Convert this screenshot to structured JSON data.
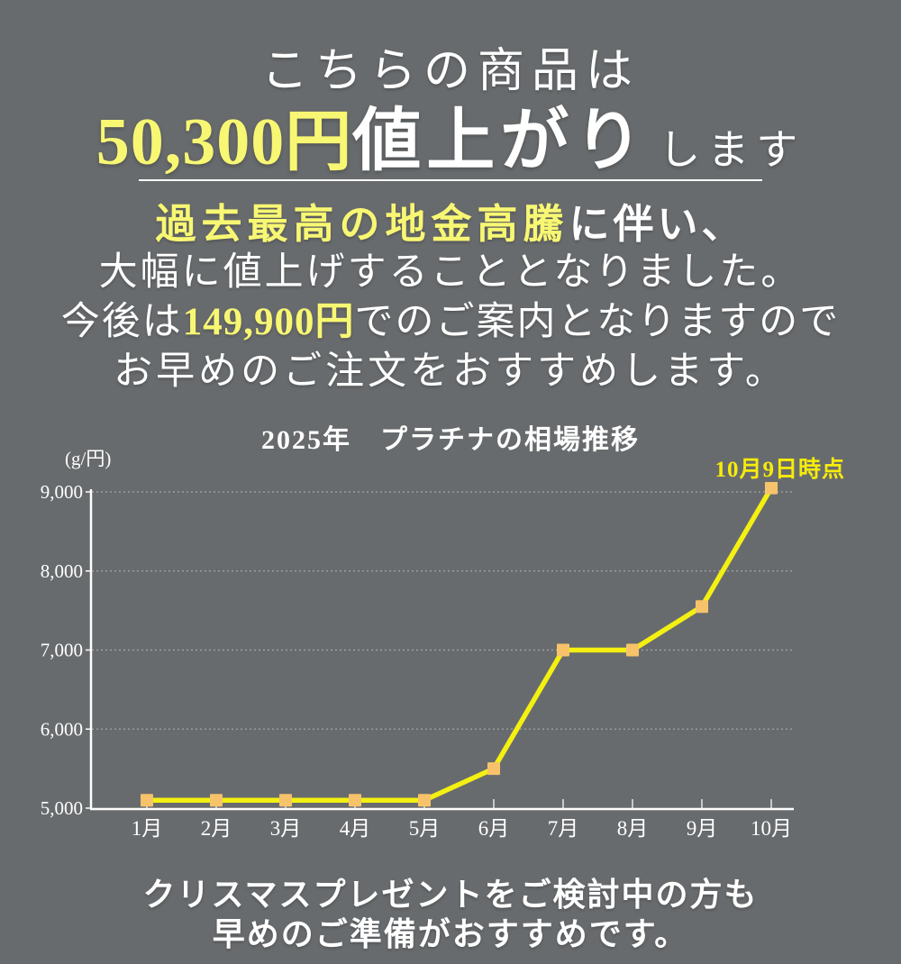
{
  "colors": {
    "background": "#686b6d",
    "text_white": "#ffffff",
    "highlight_yellow": "#f8f773",
    "annotation_yellow": "#f6ec0a",
    "line_yellow": "#f3f012",
    "marker_orange": "#f6c36b",
    "axis_white": "#fdfdfd",
    "gridline_gray": "#a3a5a7"
  },
  "header": {
    "line1": "こちらの商品は",
    "line2_price": "50,300円",
    "line2_main": "値上がり",
    "line2_suffix": "します"
  },
  "notice": {
    "line1_highlight": "過去最高の地金高騰",
    "line1_rest": "に伴い、",
    "line2": "大幅に値上げすることとなりました。",
    "line3_pre": "今後は",
    "line3_price": "149,900円",
    "line3_post": "でのご案内となりますので",
    "line4": "お早めのご注文をおすすめします。"
  },
  "chart": {
    "title": "2025年　プラチナの相場推移",
    "unit_label": "(g/円)",
    "annotation": "10月9日時点"
  },
  "chart_data": {
    "type": "line",
    "title": "2025年　プラチナの相場推移",
    "categories": [
      "1月",
      "2月",
      "3月",
      "4月",
      "5月",
      "6月",
      "7月",
      "8月",
      "9月",
      "10月"
    ],
    "values": [
      5100,
      5100,
      5100,
      5100,
      5100,
      5500,
      7000,
      7000,
      7550,
      9050
    ],
    "ylabel": "(g/円)",
    "ylim": [
      5000,
      9000
    ],
    "yticks": [
      5000,
      6000,
      7000,
      8000,
      9000
    ],
    "ytick_labels": [
      "5,000",
      "6,000",
      "7,000",
      "8,000",
      "9,000"
    ],
    "grid": true,
    "legend": false,
    "annotation": "10月9日時点",
    "line_color": "#f3f012",
    "marker_color": "#f6c36b"
  },
  "footer": {
    "line1": "クリスマスプレゼントをご検討中の方も",
    "line2": "早めのご準備がおすすめです。"
  }
}
